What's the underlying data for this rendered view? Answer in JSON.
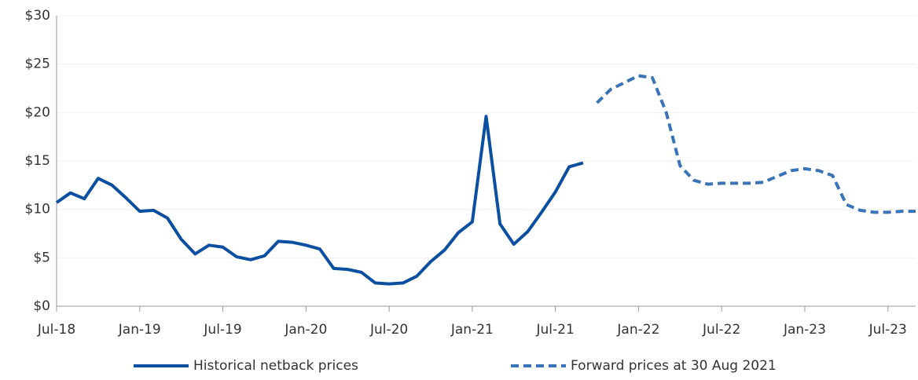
{
  "chart_data": {
    "type": "line",
    "categories": [
      "Jul-18",
      null,
      null,
      null,
      null,
      null,
      "Jan-19",
      null,
      null,
      null,
      null,
      null,
      "Jul-19",
      null,
      null,
      null,
      null,
      null,
      "Jan-20",
      null,
      null,
      null,
      null,
      null,
      "Jul-20",
      null,
      null,
      null,
      null,
      null,
      "Jan-21",
      null,
      null,
      null,
      null,
      null,
      "Jul-21",
      null,
      null,
      null,
      null,
      null,
      "Jan-22",
      null,
      null,
      null,
      null,
      null,
      "Jul-22",
      null,
      null,
      null,
      null,
      null,
      "Jan-23",
      null,
      null,
      null,
      null,
      null,
      "Jul-23",
      null,
      null
    ],
    "series": [
      {
        "name": "Historical netback prices",
        "color": "#0b4fa0",
        "dashed": false,
        "values": [
          10.7,
          11.7,
          11.1,
          13.2,
          12.5,
          11.2,
          9.8,
          9.9,
          9.1,
          6.9,
          5.4,
          6.3,
          6.1,
          5.1,
          4.8,
          5.2,
          6.7,
          6.6,
          6.3,
          5.9,
          3.9,
          3.8,
          3.5,
          2.4,
          2.3,
          2.4,
          3.1,
          4.6,
          5.8,
          7.6,
          8.7,
          19.6,
          8.5,
          6.4,
          7.7,
          9.7,
          11.8,
          14.4,
          14.8,
          null,
          null,
          null,
          null,
          null,
          null,
          null,
          null,
          null,
          null,
          null,
          null,
          null,
          null,
          null,
          null,
          null,
          null,
          null,
          null,
          null,
          null,
          null,
          null
        ]
      },
      {
        "name": "Forward prices at 30 Aug 2021",
        "color": "#3a74b8",
        "dashed": true,
        "values": [
          null,
          null,
          null,
          null,
          null,
          null,
          null,
          null,
          null,
          null,
          null,
          null,
          null,
          null,
          null,
          null,
          null,
          null,
          null,
          null,
          null,
          null,
          null,
          null,
          null,
          null,
          null,
          null,
          null,
          null,
          null,
          null,
          null,
          null,
          null,
          null,
          null,
          null,
          null,
          21.0,
          22.4,
          23.1,
          23.8,
          23.6,
          20.0,
          14.5,
          13.0,
          12.6,
          12.7,
          12.7,
          12.7,
          12.8,
          13.4,
          14.0,
          14.2,
          14.0,
          13.5,
          10.5,
          9.9,
          9.7,
          9.7,
          9.8,
          9.8
        ]
      }
    ],
    "ylim": [
      0,
      30
    ],
    "yticks": [
      {
        "value": 0,
        "label": "$0"
      },
      {
        "value": 5,
        "label": "$5"
      },
      {
        "value": 10,
        "label": "$10"
      },
      {
        "value": 15,
        "label": "$15"
      },
      {
        "value": 20,
        "label": "$20"
      },
      {
        "value": 25,
        "label": "$25"
      },
      {
        "value": 30,
        "label": "$30"
      }
    ],
    "grid": true
  }
}
